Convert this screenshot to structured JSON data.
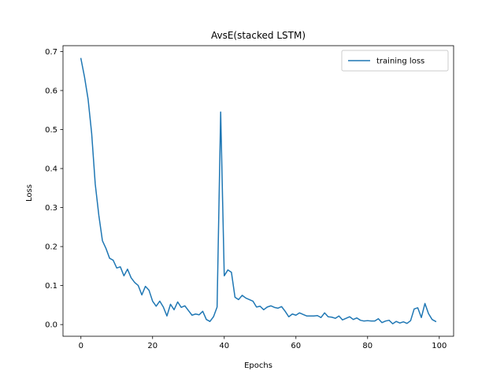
{
  "chart_data": {
    "type": "line",
    "title": "AvsE(stacked LSTM)",
    "xlabel": "Epochs",
    "ylabel": "Loss",
    "xlim": [
      -5,
      104
    ],
    "ylim": [
      -0.03,
      0.715
    ],
    "xticks": [
      0,
      20,
      40,
      60,
      80,
      100
    ],
    "yticks": [
      0.0,
      0.1,
      0.2,
      0.3,
      0.4,
      0.5,
      0.6,
      0.7
    ],
    "xtick_labels": [
      "0",
      "20",
      "40",
      "60",
      "80",
      "100"
    ],
    "ytick_labels": [
      "0.0",
      "0.1",
      "0.2",
      "0.3",
      "0.4",
      "0.5",
      "0.6",
      "0.7"
    ],
    "grid": false,
    "legend_position": "upper right",
    "series": [
      {
        "name": "training loss",
        "color": "#1f77b4",
        "x": [
          0,
          1,
          2,
          3,
          4,
          5,
          6,
          7,
          8,
          9,
          10,
          11,
          12,
          13,
          14,
          15,
          16,
          17,
          18,
          19,
          20,
          21,
          22,
          23,
          24,
          25,
          26,
          27,
          28,
          29,
          30,
          31,
          32,
          33,
          34,
          35,
          36,
          37,
          38,
          39,
          40,
          41,
          42,
          43,
          44,
          45,
          46,
          47,
          48,
          49,
          50,
          51,
          52,
          53,
          54,
          55,
          56,
          57,
          58,
          59,
          60,
          61,
          62,
          63,
          64,
          65,
          66,
          67,
          68,
          69,
          70,
          71,
          72,
          73,
          74,
          75,
          76,
          77,
          78,
          79,
          80,
          81,
          82,
          83,
          84,
          85,
          86,
          87,
          88,
          89,
          90,
          91,
          92,
          93,
          94,
          95,
          96,
          97,
          98,
          99
        ],
        "values": [
          0.682,
          0.635,
          0.578,
          0.49,
          0.36,
          0.28,
          0.215,
          0.195,
          0.17,
          0.165,
          0.145,
          0.148,
          0.125,
          0.142,
          0.12,
          0.108,
          0.1,
          0.076,
          0.098,
          0.088,
          0.06,
          0.047,
          0.06,
          0.045,
          0.022,
          0.052,
          0.038,
          0.058,
          0.044,
          0.048,
          0.036,
          0.024,
          0.027,
          0.025,
          0.034,
          0.013,
          0.008,
          0.02,
          0.045,
          0.545,
          0.125,
          0.14,
          0.134,
          0.07,
          0.064,
          0.075,
          0.068,
          0.064,
          0.06,
          0.045,
          0.047,
          0.038,
          0.045,
          0.048,
          0.044,
          0.042,
          0.046,
          0.034,
          0.02,
          0.027,
          0.024,
          0.03,
          0.026,
          0.022,
          0.022,
          0.022,
          0.023,
          0.018,
          0.03,
          0.02,
          0.019,
          0.016,
          0.022,
          0.012,
          0.016,
          0.02,
          0.013,
          0.017,
          0.011,
          0.009,
          0.01,
          0.009,
          0.009,
          0.015,
          0.005,
          0.009,
          0.011,
          0.002,
          0.008,
          0.004,
          0.007,
          0.003,
          0.01,
          0.04,
          0.043,
          0.018,
          0.054,
          0.028,
          0.013,
          0.008
        ]
      }
    ]
  }
}
